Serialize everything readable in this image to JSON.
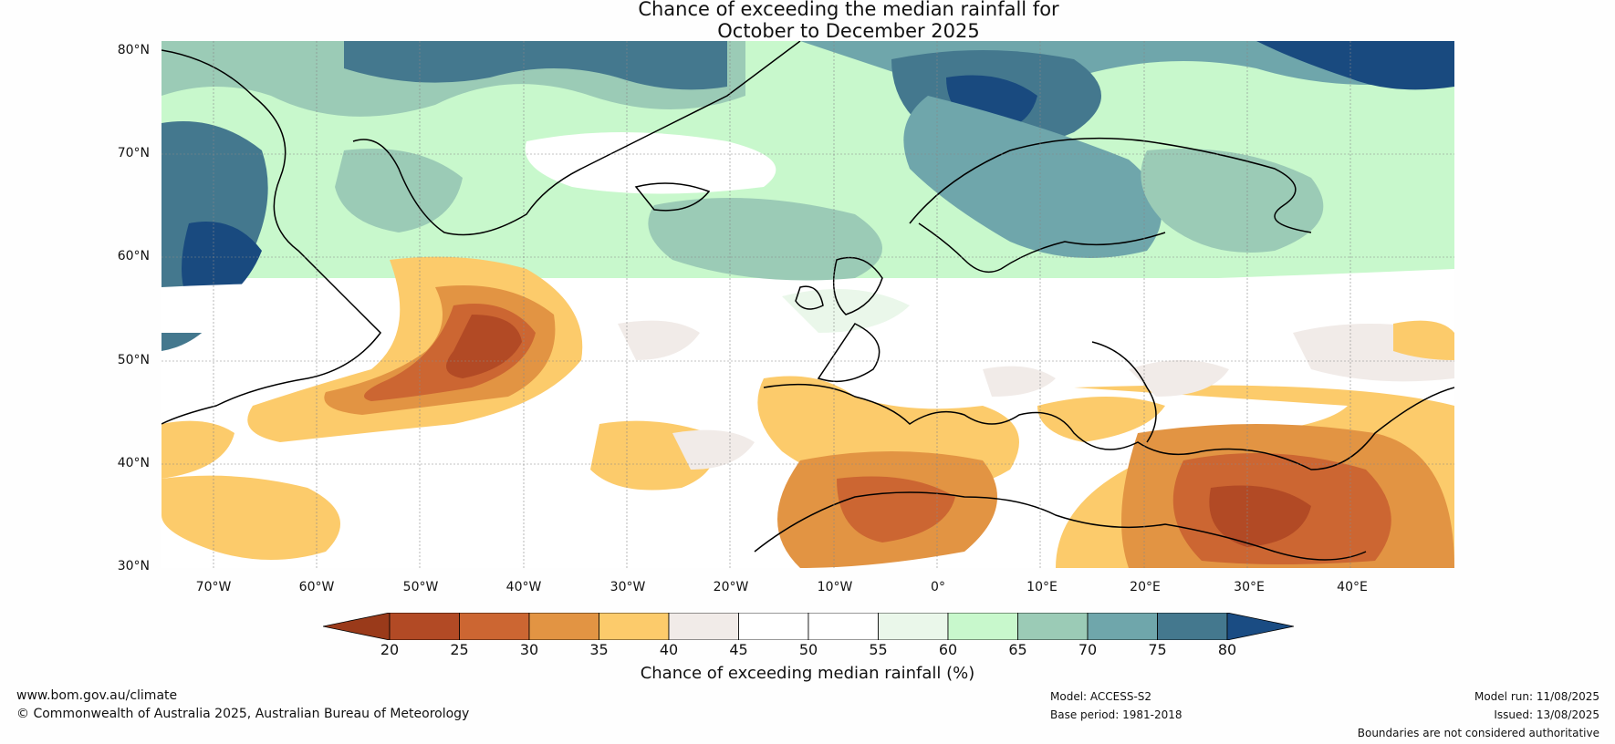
{
  "title": {
    "line1": "Chance of exceeding the median rainfall for",
    "line2": "October to December 2025"
  },
  "map": {
    "lat_labels": [
      "80°N",
      "70°N",
      "60°N",
      "50°N",
      "40°N",
      "30°N"
    ],
    "lon_labels": [
      "70°W",
      "60°W",
      "50°W",
      "40°W",
      "30°W",
      "20°W",
      "10°W",
      "0°",
      "10°E",
      "20°E",
      "30°E",
      "40°E"
    ]
  },
  "colorbar": {
    "ticks": [
      "20",
      "25",
      "30",
      "35",
      "40",
      "45",
      "50",
      "55",
      "60",
      "65",
      "70",
      "75",
      "80"
    ],
    "colors": [
      "#9a3a1a",
      "#b24a25",
      "#cc6632",
      "#e29443",
      "#fccb6b",
      "#f1ebe8",
      "#ffffff",
      "#ffffff",
      "#eaf7ea",
      "#c8f8cc",
      "#9bcbb6",
      "#6fa6ab",
      "#44788e",
      "#194a7f",
      "#1a4c83"
    ],
    "label": "Chance of exceeding median rainfall (%)"
  },
  "footer": {
    "url": "www.bom.gov.au/climate",
    "copyright": "© Commonwealth of Australia 2025, Australian Bureau of Meteorology",
    "model": "Model: ACCESS-S2",
    "base_period": "Base period: 1981-2018",
    "model_run": "Model run: 11/08/2025",
    "issued": "Issued: 13/08/2025",
    "disclaimer": "Boundaries are not considered authoritative"
  }
}
